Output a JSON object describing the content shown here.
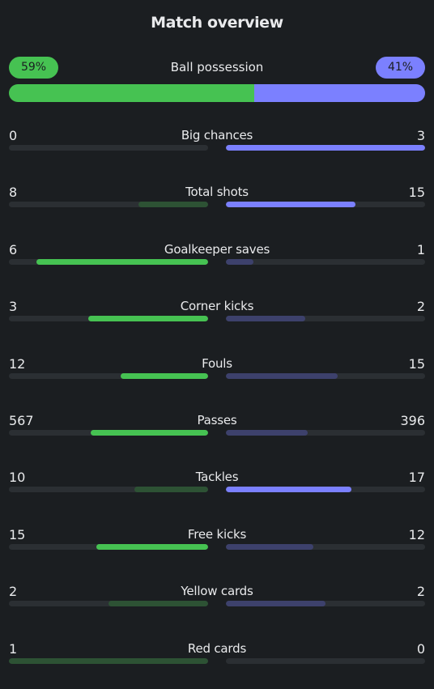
{
  "title": "Match overview",
  "colors": {
    "home_strong": "#46c252",
    "home_weak": "#2d5234",
    "away_strong": "#7b80ff",
    "away_weak": "#3d416c",
    "track": "#2b2f33"
  },
  "possession": {
    "label": "Ball possession",
    "home": "59%",
    "away": "41%",
    "home_pct": 59,
    "away_pct": 41
  },
  "stats": [
    {
      "label": "Big chances",
      "home": "0",
      "away": "3",
      "home_frac": 0.0,
      "away_frac": 1.0
    },
    {
      "label": "Total shots",
      "home": "8",
      "away": "15",
      "home_frac": 0.35,
      "away_frac": 0.65
    },
    {
      "label": "Goalkeeper saves",
      "home": "6",
      "away": "1",
      "home_frac": 0.86,
      "away_frac": 0.14
    },
    {
      "label": "Corner kicks",
      "home": "3",
      "away": "2",
      "home_frac": 0.6,
      "away_frac": 0.4
    },
    {
      "label": "Fouls",
      "home": "12",
      "away": "15",
      "home_frac": 0.44,
      "away_frac": 0.56
    },
    {
      "label": "Passes",
      "home": "567",
      "away": "396",
      "home_frac": 0.59,
      "away_frac": 0.41
    },
    {
      "label": "Tackles",
      "home": "10",
      "away": "17",
      "home_frac": 0.37,
      "away_frac": 0.63
    },
    {
      "label": "Free kicks",
      "home": "15",
      "away": "12",
      "home_frac": 0.56,
      "away_frac": 0.44
    },
    {
      "label": "Yellow cards",
      "home": "2",
      "away": "2",
      "home_frac": 0.5,
      "away_frac": 0.5
    },
    {
      "label": "Red cards",
      "home": "1",
      "away": "0",
      "home_frac": 1.0,
      "away_frac": 0.0
    }
  ]
}
